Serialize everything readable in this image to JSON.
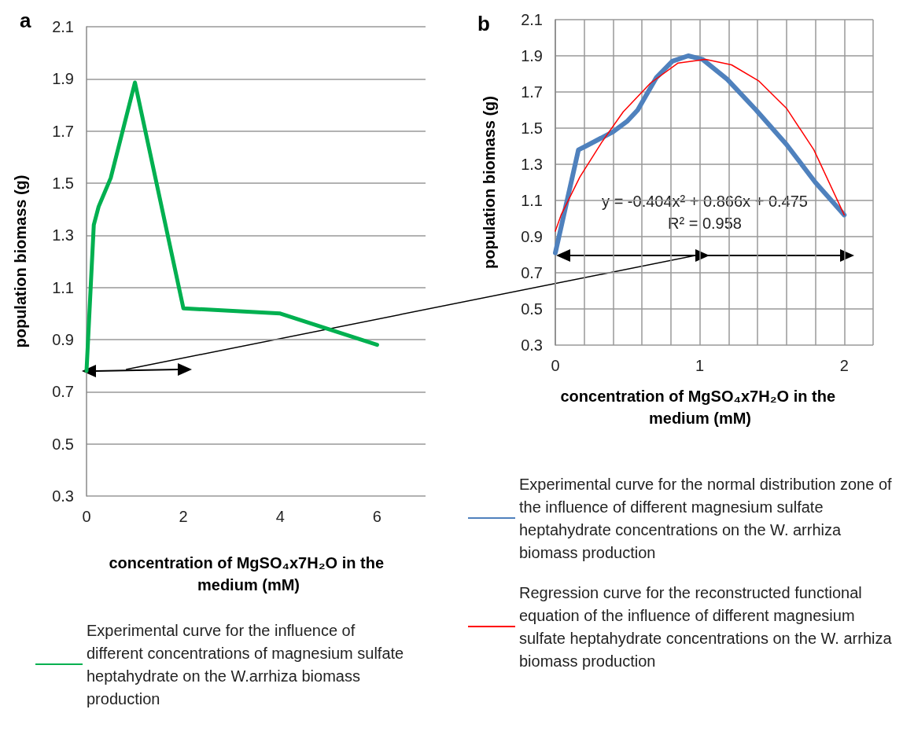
{
  "chart_data": [
    {
      "type": "line",
      "title": "a",
      "xlabel": "concentration of MgSO₄x7H₂O in the medium (mM)",
      "ylabel": "population biomass (g)",
      "x": [
        0,
        0.15,
        0.25,
        0.5,
        1,
        2,
        4,
        6
      ],
      "series": [
        {
          "name": "Experimental curve for the influence of different concentrations of magnesium sulfate heptahydrate on the W.arrhiza biomass production",
          "color": "#00b050",
          "values": [
            0.78,
            1.34,
            1.41,
            1.52,
            1.886,
            1.02,
            1.0,
            0.88
          ]
        }
      ],
      "xlim": [
        0,
        7
      ],
      "xticks": [
        0,
        2,
        4,
        6
      ],
      "ylim": [
        0.3,
        2.1
      ],
      "yticks": [
        0.3,
        0.5,
        0.7,
        0.9,
        1.1,
        1.3,
        1.5,
        1.7,
        1.9,
        2.1
      ],
      "grid": "y",
      "legend": "bottom",
      "marker": "none",
      "line_style": "solid"
    },
    {
      "type": "line",
      "title": "b",
      "xlabel": "concentration of MgSO₄x7H₂O in the medium (mM)",
      "ylabel": "population biomass (g)",
      "series": [
        {
          "name": "Experimental curve for the normal distribution zone of the influence of different magnesium sulfate heptahydrate concentrations on the W. arrhiza biomass production",
          "color": "#4f81bd",
          "x": [
            0,
            0.16,
            0.21,
            0.4,
            0.5,
            0.57,
            0.7,
            0.81,
            0.92,
            1.02,
            1.19,
            1.39,
            1.6,
            1.8,
            2
          ],
          "values": [
            0.81,
            1.38,
            1.4,
            1.48,
            1.54,
            1.6,
            1.78,
            1.87,
            1.9,
            1.88,
            1.77,
            1.6,
            1.41,
            1.2,
            1.02
          ]
        },
        {
          "name": "Regression curve for the reconstructed functional equation of the influence of different magnesium sulfate heptahydrate concentrations on the W. arrhiza biomass production",
          "color": "#ff0000",
          "x": [
            0,
            0.04,
            0.17,
            0.32,
            0.47,
            0.66,
            0.85,
            1.04,
            1.22,
            1.41,
            1.6,
            1.79,
            2
          ],
          "values": [
            0.93,
            1.02,
            1.23,
            1.42,
            1.59,
            1.75,
            1.86,
            1.88,
            1.85,
            1.76,
            1.61,
            1.38,
            1.02
          ]
        }
      ],
      "xlim": [
        0,
        2.2
      ],
      "xticks": [
        0,
        {
          "value": 0.2,
          "label": null
        },
        {
          "value": 0.4,
          "label": null
        },
        {
          "value": 0.6,
          "label": null
        },
        {
          "value": 0.8,
          "label": null
        },
        1,
        {
          "value": 1.2,
          "label": null
        },
        {
          "value": 1.4,
          "label": null
        },
        {
          "value": 1.6,
          "label": null
        },
        {
          "value": 1.8,
          "label": null
        },
        2,
        {
          "value": 2.2,
          "label": null
        }
      ],
      "ylim": [
        0.3,
        2.1
      ],
      "yticks": [
        0.3,
        0.5,
        0.7,
        0.9,
        1.1,
        1.3,
        1.5,
        1.7,
        1.9,
        2.1
      ],
      "annotations": [
        "y = -0.404x² + 0.866x + 0.475",
        "R² = 0.958"
      ],
      "grid": true,
      "legend": "bottom",
      "marker": "none",
      "line_style": "solid"
    }
  ]
}
